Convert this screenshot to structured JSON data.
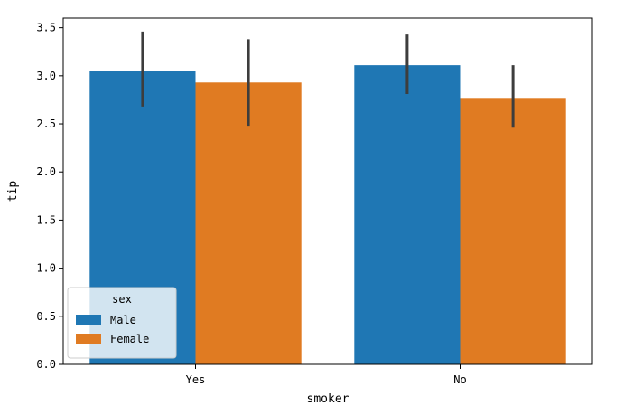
{
  "chart_data": {
    "type": "bar",
    "categories": [
      "Yes",
      "No"
    ],
    "xlabel": "smoker",
    "ylabel": "tip",
    "ylim": [
      0,
      3.6
    ],
    "yticks": [
      "0.0",
      "0.5",
      "1.0",
      "1.5",
      "2.0",
      "2.5",
      "3.0",
      "3.5"
    ],
    "grid": false,
    "series": [
      {
        "name": "Male",
        "color": "#1f77b4",
        "values": [
          3.05,
          3.11
        ],
        "error_low": [
          2.68,
          2.81
        ],
        "error_high": [
          3.46,
          3.43
        ]
      },
      {
        "name": "Female",
        "color": "#e07b22",
        "values": [
          2.93,
          2.77
        ],
        "error_low": [
          2.48,
          2.46
        ],
        "error_high": [
          3.38,
          3.11
        ]
      }
    ],
    "legend": {
      "title": "sex",
      "position": "lower-left"
    }
  }
}
